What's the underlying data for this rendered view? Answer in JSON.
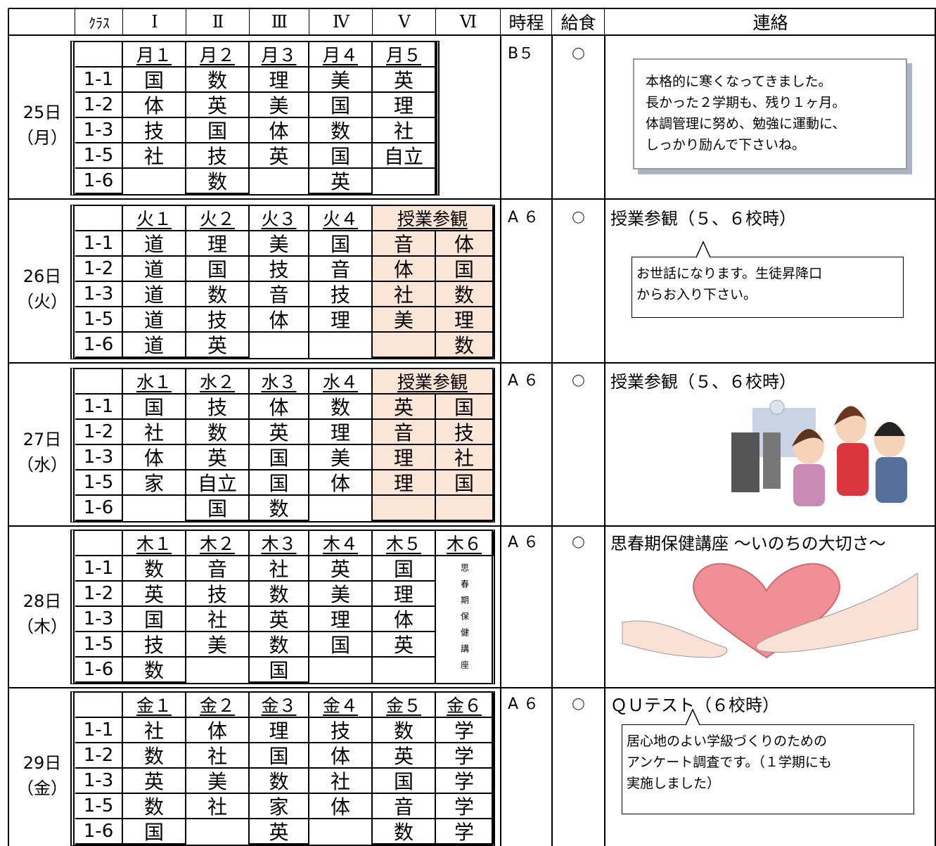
{
  "header": {
    "class": "ｸﾗｽ",
    "periods": [
      "Ⅰ",
      "Ⅱ",
      "Ⅲ",
      "Ⅳ",
      "Ⅴ",
      "Ⅵ"
    ],
    "schedule": "時程",
    "lunch": "給食",
    "notice": "連絡"
  },
  "days": [
    {
      "date": "25日",
      "weekday": "（月）",
      "periods": [
        "月１",
        "月２",
        "月３",
        "月４",
        "月５"
      ],
      "classes": [
        {
          "name": "1-1",
          "subjects": [
            "国",
            "数",
            "理",
            "美",
            "英"
          ]
        },
        {
          "name": "1-2",
          "subjects": [
            "体",
            "英",
            "美",
            "国",
            "理"
          ]
        },
        {
          "name": "1-3",
          "subjects": [
            "技",
            "国",
            "体",
            "数",
            "社"
          ]
        },
        {
          "name": "1-5",
          "subjects": [
            "社",
            "技",
            "英",
            "国",
            "自立"
          ]
        },
        {
          "name": "1-6",
          "subjects": [
            null,
            "数",
            null,
            "英",
            null
          ]
        }
      ],
      "schedule": "B５",
      "lunch": "○",
      "notice": {
        "box": [
          "本格的に寒くなってきました。",
          "長かった２学期も、残り１ヶ月。",
          "体調管理に努め、勉強に運動に、",
          "しっかり励んで下さいね。"
        ]
      }
    },
    {
      "date": "26日",
      "weekday": "（火）",
      "periods": [
        "火１",
        "火２",
        "火３",
        "火４",
        "授業参観"
      ],
      "classes": [
        {
          "name": "1-1",
          "subjects": [
            "道",
            "理",
            "美",
            "国",
            "音",
            "体"
          ]
        },
        {
          "name": "1-2",
          "subjects": [
            "道",
            "国",
            "技",
            "音",
            "体",
            "国"
          ]
        },
        {
          "name": "1-3",
          "subjects": [
            "道",
            "数",
            "音",
            "技",
            "社",
            "数"
          ]
        },
        {
          "name": "1-5",
          "subjects": [
            "道",
            "技",
            "体",
            "理",
            "美",
            "理"
          ]
        },
        {
          "name": "1-6",
          "subjects": [
            "道",
            "英",
            null,
            null,
            null,
            "数"
          ]
        }
      ],
      "schedule": "A ６",
      "lunch": "○",
      "notice": {
        "title": "授業参観（５、６校時）",
        "callout": [
          "お世話になります。生徒昇降口",
          "からお入り下さい。"
        ]
      }
    },
    {
      "date": "27日",
      "weekday": "（水）",
      "periods": [
        "水１",
        "水２",
        "水３",
        "水４",
        "授業参観"
      ],
      "classes": [
        {
          "name": "1-1",
          "subjects": [
            "国",
            "技",
            "体",
            "数",
            "英",
            "国"
          ]
        },
        {
          "name": "1-2",
          "subjects": [
            "社",
            "数",
            "英",
            "理",
            "音",
            "技"
          ]
        },
        {
          "name": "1-3",
          "subjects": [
            "体",
            "英",
            "国",
            "美",
            "理",
            "社"
          ]
        },
        {
          "name": "1-5",
          "subjects": [
            "家",
            "自立",
            "国",
            "体",
            "理",
            "国"
          ]
        },
        {
          "name": "1-6",
          "subjects": [
            null,
            "国",
            "数",
            null,
            null,
            null
          ]
        }
      ],
      "schedule": "A ６",
      "lunch": "○",
      "notice": {
        "title": "授業参観（５、６校時）"
      }
    },
    {
      "date": "28日",
      "weekday": "（木）",
      "periods": [
        "木１",
        "木２",
        "木３",
        "木４",
        "木５",
        "木６"
      ],
      "classes": [
        {
          "name": "1-1",
          "subjects": [
            "数",
            "音",
            "社",
            "英",
            "国"
          ]
        },
        {
          "name": "1-2",
          "subjects": [
            "英",
            "技",
            "数",
            "美",
            "理"
          ]
        },
        {
          "name": "1-3",
          "subjects": [
            "国",
            "社",
            "英",
            "理",
            "体"
          ]
        },
        {
          "name": "1-5",
          "subjects": [
            "技",
            "美",
            "数",
            "国",
            "英"
          ]
        },
        {
          "name": "1-6",
          "subjects": [
            "数",
            null,
            "国",
            null,
            null
          ]
        }
      ],
      "vertical": "思春期保健講座",
      "schedule": "A ６",
      "lunch": "○",
      "notice": {
        "title": "思春期保健講座 ～いのちの大切さ～"
      }
    },
    {
      "date": "29日",
      "weekday": "（金）",
      "periods": [
        "金１",
        "金２",
        "金３",
        "金４",
        "金５",
        "金６"
      ],
      "classes": [
        {
          "name": "1-1",
          "subjects": [
            "社",
            "体",
            "理",
            "技",
            "数",
            "学"
          ]
        },
        {
          "name": "1-2",
          "subjects": [
            "数",
            "社",
            "国",
            "体",
            "英",
            "学"
          ]
        },
        {
          "name": "1-3",
          "subjects": [
            "英",
            "美",
            "数",
            "社",
            "国",
            "学"
          ]
        },
        {
          "name": "1-5",
          "subjects": [
            "数",
            "社",
            "家",
            "体",
            "音",
            "学"
          ]
        },
        {
          "name": "1-6",
          "subjects": [
            "国",
            null,
            "英",
            null,
            "数",
            "学"
          ]
        }
      ],
      "schedule": "A ６",
      "lunch": "○",
      "notice": {
        "title": "ＱＵテスト（６校時）",
        "callout": [
          "居心地のよい学級づくりのための",
          "アンケート調査です。（１学期にも",
          "実施しました）"
        ]
      }
    }
  ]
}
